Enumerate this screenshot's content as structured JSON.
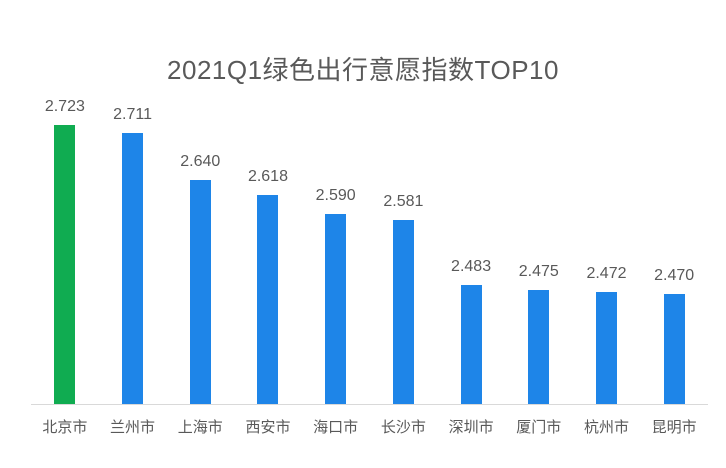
{
  "chart_data": {
    "type": "bar",
    "title": "2021Q1绿色出行意愿指数TOP10",
    "categories": [
      "北京市",
      "兰州市",
      "上海市",
      "西安市",
      "海口市",
      "长沙市",
      "深圳市",
      "厦门市",
      "杭州市",
      "昆明市"
    ],
    "values": [
      2.723,
      2.711,
      2.64,
      2.618,
      2.59,
      2.581,
      2.483,
      2.475,
      2.472,
      2.47
    ],
    "value_labels": [
      "2.723",
      "2.711",
      "2.640",
      "2.618",
      "2.590",
      "2.581",
      "2.483",
      "2.475",
      "2.472",
      "2.470"
    ],
    "highlight_index": 0,
    "colors": {
      "highlight_bar": "#10ac51",
      "default_bar": "#1e85e8",
      "axis_line": "#d9d9d9",
      "text": "#595959"
    },
    "ylim": [
      2.305,
      2.76
    ],
    "xlabel": "",
    "ylabel": "",
    "grid": false,
    "legend": false,
    "data_labels": true
  }
}
